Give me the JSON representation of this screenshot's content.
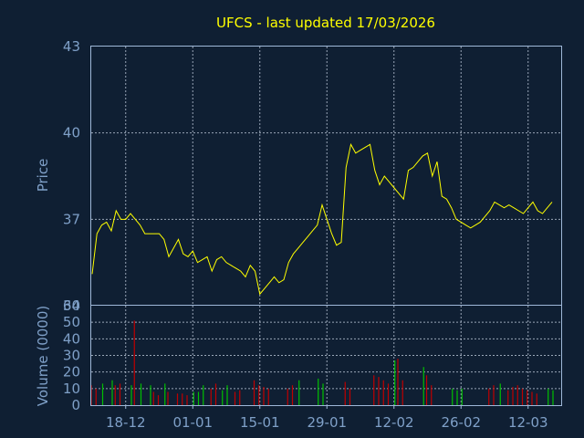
{
  "title": "UFCS - last updated 17/03/2026",
  "colors": {
    "background": "#0f1f33",
    "price_line": "#ffff00",
    "volume_up": "#00c000",
    "volume_down": "#c00000",
    "axis_text": "#7fa0c8",
    "title": "#ffff00"
  },
  "chart_data": [
    {
      "type": "line",
      "ylabel": "Price",
      "ylim": [
        34,
        43
      ],
      "yticks": [
        "43",
        "40",
        "37",
        "34"
      ],
      "grid": true,
      "x": [
        "2025-12-11",
        "2025-12-12",
        "2025-12-13",
        "2025-12-14",
        "2025-12-15",
        "2025-12-16",
        "2025-12-17",
        "2025-12-18",
        "2025-12-19",
        "2025-12-20",
        "2025-12-21",
        "2025-12-22",
        "2025-12-23",
        "2025-12-24",
        "2025-12-25",
        "2025-12-26",
        "2025-12-27",
        "2025-12-28",
        "2025-12-29",
        "2025-12-30",
        "2025-12-31",
        "2026-01-01",
        "2026-01-02",
        "2026-01-03",
        "2026-01-04",
        "2026-01-05",
        "2026-01-06",
        "2026-01-07",
        "2026-01-08",
        "2026-01-09",
        "2026-01-10",
        "2026-01-11",
        "2026-01-12",
        "2026-01-13",
        "2026-01-14",
        "2026-01-15",
        "2026-01-16",
        "2026-01-17",
        "2026-01-18",
        "2026-01-19",
        "2026-01-20",
        "2026-01-21",
        "2026-01-22",
        "2026-01-23",
        "2026-01-24",
        "2026-01-25",
        "2026-01-26",
        "2026-01-27",
        "2026-01-28",
        "2026-01-29",
        "2026-01-30",
        "2026-01-31",
        "2026-02-01",
        "2026-02-02",
        "2026-02-03",
        "2026-02-04",
        "2026-02-05",
        "2026-02-06",
        "2026-02-07",
        "2026-02-08",
        "2026-02-09",
        "2026-02-10",
        "2026-02-11",
        "2026-02-12",
        "2026-02-13",
        "2026-02-14",
        "2026-02-15",
        "2026-02-16",
        "2026-02-17",
        "2026-02-18",
        "2026-02-19",
        "2026-02-20",
        "2026-02-21",
        "2026-02-22",
        "2026-02-23",
        "2026-02-24",
        "2026-02-25",
        "2026-02-26",
        "2026-02-27",
        "2026-02-28",
        "2026-03-01",
        "2026-03-02",
        "2026-03-03",
        "2026-03-04",
        "2026-03-05",
        "2026-03-06",
        "2026-03-07",
        "2026-03-08",
        "2026-03-09",
        "2026-03-10",
        "2026-03-11",
        "2026-03-12",
        "2026-03-13",
        "2026-03-14",
        "2026-03-15",
        "2026-03-16",
        "2026-03-17"
      ],
      "series": [
        {
          "values": [
            35.1,
            36.5,
            36.8,
            36.9,
            36.6,
            37.3,
            37.0,
            37.0,
            37.2,
            37.0,
            36.8,
            36.5,
            36.5,
            36.5,
            36.5,
            36.3,
            35.7,
            36.0,
            36.3,
            35.8,
            35.7,
            35.9,
            35.5,
            35.6,
            35.7,
            35.2,
            35.6,
            35.7,
            35.5,
            35.4,
            35.3,
            35.2,
            35.0,
            35.4,
            35.2,
            34.4,
            34.6,
            34.8,
            35.0,
            34.8,
            34.9,
            35.5,
            35.8,
            36.0,
            36.2,
            36.4,
            36.6,
            36.8,
            37.5,
            37.0,
            36.5,
            36.1,
            36.2,
            38.8,
            39.6,
            39.3,
            39.4,
            39.5,
            39.6,
            38.7,
            38.2,
            38.5,
            38.3,
            38.1,
            37.9,
            37.7,
            38.7,
            38.8,
            39.0,
            39.2,
            39.3,
            38.5,
            39.0,
            37.8,
            37.7,
            37.4,
            37.0,
            36.9,
            36.8,
            36.7,
            36.8,
            36.9,
            37.1,
            37.3,
            37.6,
            37.5,
            37.4,
            37.5,
            37.4,
            37.3,
            37.2,
            37.4,
            37.6,
            37.3,
            37.2,
            37.4,
            37.6
          ]
        }
      ]
    },
    {
      "type": "bar",
      "ylabel": "Volume (0000)",
      "ylim": [
        0,
        60
      ],
      "yticks": [
        "60",
        "50",
        "40",
        "30",
        "20",
        "10",
        "0"
      ],
      "xticks": [
        "18-12",
        "01-01",
        "15-01",
        "29-01",
        "12-02",
        "26-02",
        "12-03"
      ],
      "grid": true,
      "series": [
        {
          "name": "up",
          "values": [
            0,
            0,
            13,
            0,
            15,
            0,
            0,
            0,
            12,
            0,
            13,
            0,
            12,
            0,
            0,
            13,
            0,
            0,
            0,
            0,
            0,
            8,
            8,
            12,
            0,
            0,
            0,
            9,
            12,
            0,
            0,
            0,
            0,
            0,
            0,
            0,
            0,
            0,
            0,
            0,
            0,
            0,
            0,
            15,
            0,
            0,
            0,
            16,
            13,
            0,
            0,
            0,
            0,
            0,
            0,
            0,
            0,
            0,
            0,
            0,
            0,
            0,
            0,
            27,
            0,
            0,
            0,
            0,
            0,
            23,
            0,
            0,
            0,
            0,
            0,
            10,
            9,
            10,
            0,
            0,
            0,
            0,
            0,
            0,
            0,
            13,
            0,
            0,
            0,
            0,
            0,
            0,
            0,
            0,
            0,
            10,
            9
          ]
        },
        {
          "name": "down",
          "values": [
            12,
            10,
            0,
            0,
            0,
            12,
            13,
            0,
            0,
            51,
            0,
            0,
            0,
            8,
            6,
            0,
            8,
            0,
            7,
            7,
            6,
            0,
            0,
            0,
            0,
            10,
            13,
            0,
            0,
            0,
            8,
            9,
            0,
            0,
            15,
            12,
            11,
            10,
            0,
            0,
            0,
            10,
            12,
            0,
            0,
            0,
            0,
            0,
            0,
            0,
            0,
            0,
            0,
            14,
            10,
            0,
            0,
            0,
            0,
            18,
            17,
            15,
            13,
            0,
            28,
            15,
            0,
            0,
            0,
            0,
            18,
            12,
            0,
            0,
            0,
            0,
            0,
            0,
            0,
            0,
            0,
            0,
            0,
            10,
            12,
            0,
            0,
            9,
            11,
            12,
            10,
            9,
            8,
            7,
            0,
            0,
            0
          ]
        }
      ]
    }
  ]
}
